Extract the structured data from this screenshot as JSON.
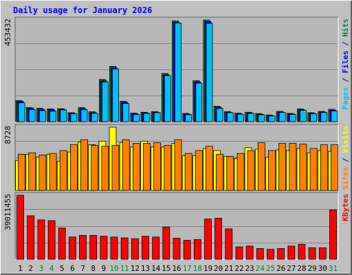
{
  "chart_data": {
    "type": "bar",
    "title": "Daily usage for January 2026",
    "days": [
      {
        "label": "1",
        "weekend": false
      },
      {
        "label": "2",
        "weekend": false
      },
      {
        "label": "3",
        "weekend": true
      },
      {
        "label": "4",
        "weekend": true
      },
      {
        "label": "5",
        "weekend": false
      },
      {
        "label": "6",
        "weekend": false
      },
      {
        "label": "7",
        "weekend": false
      },
      {
        "label": "8",
        "weekend": false
      },
      {
        "label": "9",
        "weekend": false
      },
      {
        "label": "10",
        "weekend": true
      },
      {
        "label": "11",
        "weekend": true
      },
      {
        "label": "12",
        "weekend": false
      },
      {
        "label": "13",
        "weekend": false
      },
      {
        "label": "14",
        "weekend": false
      },
      {
        "label": "15",
        "weekend": false
      },
      {
        "label": "16",
        "weekend": false
      },
      {
        "label": "17",
        "weekend": true
      },
      {
        "label": "18",
        "weekend": true
      },
      {
        "label": "19",
        "weekend": false
      },
      {
        "label": "20",
        "weekend": false
      },
      {
        "label": "21",
        "weekend": false
      },
      {
        "label": "22",
        "weekend": false
      },
      {
        "label": "23",
        "weekend": false
      },
      {
        "label": "24",
        "weekend": true
      },
      {
        "label": "25",
        "weekend": true
      },
      {
        "label": "26",
        "weekend": false
      },
      {
        "label": "27",
        "weekend": false
      },
      {
        "label": "28",
        "weekend": false
      },
      {
        "label": "29",
        "weekend": false
      },
      {
        "label": "30",
        "weekend": false
      },
      {
        "label": "31",
        "weekend": true
      }
    ],
    "panels": [
      {
        "id": "pages-files-hits",
        "ymax_label": "453432",
        "ymax": 453432,
        "side_label": [
          {
            "text": "Pages",
            "color": "#00c0ff"
          },
          {
            "text": " / ",
            "color": "#000080"
          },
          {
            "text": "Files",
            "color": "#0000ff"
          },
          {
            "text": " / ",
            "color": "#000080"
          },
          {
            "text": "Hits",
            "color": "#008040"
          }
        ],
        "series": [
          {
            "name": "Hits",
            "color": "#008040",
            "values": [
              94000,
              63000,
              60000,
              57000,
              58000,
              40000,
              63000,
              44000,
              188000,
              247000,
              91000,
              38000,
              42000,
              45000,
              215000,
              449000,
              37000,
              183000,
              453000,
              69000,
              45000,
              38000,
              42000,
              36000,
              30000,
              46000,
              37000,
              57000,
              40000,
              46000,
              55000
            ]
          },
          {
            "name": "Files",
            "color": "#0000ff",
            "values": [
              90000,
              59000,
              55000,
              53000,
              55000,
              37000,
              58000,
              40000,
              182000,
              240000,
              86000,
              35000,
              39000,
              42000,
              209000,
              442000,
              34000,
              177000,
              446000,
              64000,
              42000,
              35000,
              39000,
              33000,
              27000,
              43000,
              34000,
              53000,
              37000,
              43000,
              51000
            ]
          },
          {
            "name": "Pages",
            "color": "#00c0ff",
            "values": [
              84000,
              54000,
              49000,
              47000,
              52000,
              35000,
              53000,
              37000,
              177000,
              235000,
              81000,
              32000,
              37000,
              40000,
              205000,
              440000,
              31000,
              172000,
              438000,
              59000,
              40000,
              33000,
              37000,
              31000,
              25000,
              41000,
              32000,
              51000,
              35000,
              41000,
              48000
            ]
          }
        ]
      },
      {
        "id": "visits-sites",
        "ymax_label": "8728",
        "ymax": 8728,
        "side_label": [
          {
            "text": "Sites",
            "color": "#ff8000"
          },
          {
            "text": " / ",
            "color": "#000080"
          },
          {
            "text": "Visits",
            "color": "#ffff00"
          }
        ],
        "series": [
          {
            "name": "Visits",
            "color": "#ffff00",
            "values": [
              4100,
              5000,
              4600,
              5000,
              4000,
              5300,
              6700,
              6300,
              6800,
              8728,
              6600,
              6000,
              6800,
              6000,
              6000,
              6500,
              4800,
              4800,
              5800,
              5500,
              4700,
              4400,
              5900,
              5700,
              4600,
              5600,
              5500,
              5800,
              5200,
              5500,
              5400
            ]
          },
          {
            "name": "Sites",
            "color": "#ff8000",
            "values": [
              5000,
              5200,
              4900,
              5100,
              5500,
              6300,
              7000,
              6200,
              6100,
              6200,
              7000,
              6500,
              6500,
              6600,
              6200,
              7000,
              5100,
              5500,
              6100,
              5000,
              4700,
              5100,
              5500,
              6600,
              5500,
              6500,
              6500,
              6400,
              5800,
              6300,
              6300
            ]
          }
        ]
      },
      {
        "id": "kbytes",
        "ymax_label": "39011455",
        "ymax": 39011455,
        "side_label": [
          {
            "text": "KBytes",
            "color": "#ff0000"
          }
        ],
        "series": [
          {
            "name": "KBytes",
            "color": "#ff0000",
            "values": [
              39011455,
              26500000,
              24000000,
              23500000,
              19000000,
              13500000,
              14500000,
              14500000,
              14000000,
              13500000,
              13000000,
              12500000,
              14000000,
              13500000,
              19500000,
              12800000,
              11500000,
              12000000,
              24500000,
              25000000,
              18500000,
              7500000,
              8000000,
              6500000,
              6000000,
              6500000,
              8000000,
              9000000,
              7000000,
              7000000,
              30000000
            ]
          }
        ]
      }
    ],
    "colors": {
      "background": "#c0c0c0",
      "plot_bg": "#b8b8b8",
      "grid": "#808080",
      "title": "#0000ff",
      "axis_text": "#000000",
      "weekday_text": "#000000",
      "weekend_text": "#008040"
    }
  }
}
